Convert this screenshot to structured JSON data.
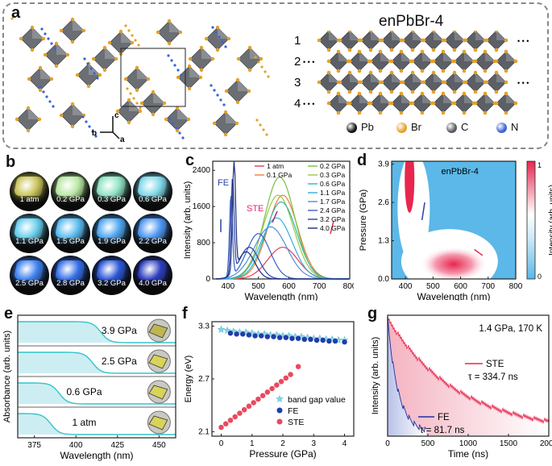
{
  "panels": {
    "a": "a",
    "b": "b",
    "c": "c",
    "d": "d",
    "e": "e",
    "f": "f",
    "g": "g"
  },
  "panel_a": {
    "title": "enPbBr-4",
    "layers": [
      "1",
      "2",
      "3",
      "4"
    ],
    "dots": "• • •",
    "legend": [
      {
        "label": "Pb",
        "color": "#111111"
      },
      {
        "label": "Br",
        "color": "#e5a12a"
      },
      {
        "label": "C",
        "color": "#555a60"
      },
      {
        "label": "N",
        "color": "#3a62d6"
      }
    ],
    "axes": {
      "c": "c",
      "a": "a",
      "b": "b"
    }
  },
  "panel_b": {
    "images": [
      {
        "label": "1 atm",
        "color": "#c9c45a"
      },
      {
        "label": "0.2 GPa",
        "color": "#b9e8a3"
      },
      {
        "label": "0.3 GPa",
        "color": "#8fe3c4"
      },
      {
        "label": "0.6 GPa",
        "color": "#7fd8ea"
      },
      {
        "label": "1.1 GPa",
        "color": "#69cfee"
      },
      {
        "label": "1.5 GPa",
        "color": "#5bbcf0"
      },
      {
        "label": "1.9 GPa",
        "color": "#4fa7f1"
      },
      {
        "label": "2.2 GPa",
        "color": "#4e97f3"
      },
      {
        "label": "2.5 GPa",
        "color": "#3f82f0"
      },
      {
        "label": "2.8 GPa",
        "color": "#356fe8"
      },
      {
        "label": "3.2 GPa",
        "color": "#2c57d7"
      },
      {
        "label": "4.0 GPa",
        "color": "#2d3fbf"
      }
    ]
  },
  "chart_data": [
    {
      "id": "c",
      "type": "line",
      "xlabel": "Wavelength (nm)",
      "ylabel": "Intensity (arb. units)",
      "xlim": [
        350,
        800
      ],
      "ylim": [
        0,
        2600
      ],
      "xticks": [
        400,
        500,
        600,
        700,
        800
      ],
      "yticks": [
        0,
        800,
        1600,
        2400
      ],
      "annotations": [
        "FE",
        "STE"
      ],
      "series": [
        {
          "name": "1 atm",
          "color": "#e83a5a",
          "fe_amp": 0,
          "ste_amp": 700,
          "ste_center": 580,
          "ste_width": 70
        },
        {
          "name": "0.1 GPa",
          "color": "#f07c3c",
          "fe_amp": 0,
          "ste_amp": 1850,
          "ste_center": 580,
          "ste_width": 70
        },
        {
          "name": "0.2 GPa",
          "color": "#76c043",
          "fe_amp": 0,
          "ste_amp": 2250,
          "ste_center": 570,
          "ste_width": 70
        },
        {
          "name": "0.3 GPa",
          "color": "#9bc748",
          "fe_amp": 0,
          "ste_amp": 1850,
          "ste_center": 565,
          "ste_width": 72
        },
        {
          "name": "0.6 GPa",
          "color": "#2fb8a6",
          "fe_amp": 0,
          "ste_amp": 1700,
          "ste_center": 575,
          "ste_width": 72
        },
        {
          "name": "1.1 GPa",
          "color": "#36aee0",
          "fe_amp": 0,
          "ste_amp": 1350,
          "ste_center": 560,
          "ste_width": 72
        },
        {
          "name": "1.7 GPa",
          "color": "#4f8fd9",
          "fe_amp": 0,
          "ste_amp": 1150,
          "ste_center": 540,
          "ste_width": 75
        },
        {
          "name": "2.4 GPa",
          "color": "#3a5fc2",
          "fe_amp": 1800,
          "fe_center": 410,
          "fe_width": 7,
          "ste_amp": 1000,
          "ste_center": 500,
          "ste_width": 55
        },
        {
          "name": "3.2 GPa",
          "color": "#2a42a3",
          "fe_amp": 2100,
          "fe_center": 415,
          "fe_width": 7,
          "ste_amp": 700,
          "ste_center": 470,
          "ste_width": 45
        },
        {
          "name": "4.0 GPa",
          "color": "#1c2b7a",
          "fe_amp": 2450,
          "fe_center": 420,
          "fe_width": 7,
          "ste_amp": 600,
          "ste_center": 460,
          "ste_width": 40
        }
      ]
    },
    {
      "id": "d",
      "type": "heatmap",
      "title": "enPbBr-4",
      "xlabel": "Wavelength (nm)",
      "ylabel": "Pressure (GPa)",
      "xlim": [
        350,
        800
      ],
      "ylim": [
        0,
        4.0
      ],
      "xticks": [
        400,
        500,
        600,
        700,
        800
      ],
      "yticks": [
        "0.0",
        "1.3",
        "2.6",
        "3.9"
      ],
      "colorbar": {
        "label": "Intensity (arb. units)",
        "ticks": [
          "1",
          "0"
        ],
        "min_color": "#5bb8e8",
        "mid_color": "#ffffff",
        "max_color": "#e8264e"
      }
    },
    {
      "id": "e",
      "type": "line",
      "xlabel": "Wavelength (nm)",
      "ylabel": "Absorbance (arb. units)",
      "xlim": [
        365,
        460
      ],
      "xticks": [
        375,
        400,
        425,
        450
      ],
      "series": [
        {
          "name": "3.9 GPa",
          "edge": 415
        },
        {
          "name": "2.5 GPa",
          "edge": 410
        },
        {
          "name": "0.6 GPa",
          "edge": 390
        },
        {
          "name": "1 atm",
          "edge": 385
        }
      ]
    },
    {
      "id": "f",
      "type": "scatter",
      "xlabel": "Pressure (GPa)",
      "ylabel": "Energy (eV)",
      "xlim": [
        -0.3,
        4.3
      ],
      "ylim": [
        2.05,
        3.35
      ],
      "xticks": [
        0,
        1,
        2,
        3,
        4
      ],
      "yticks": [
        2.1,
        2.7,
        3.3
      ],
      "series": [
        {
          "name": "band gap value",
          "marker": "star",
          "color": "#7ed6e8",
          "x": [
            0,
            0.2,
            0.4,
            0.6,
            0.8,
            1.0,
            1.2,
            1.4,
            1.6,
            1.8,
            2.0,
            2.2,
            2.4,
            2.6,
            2.8,
            3.0,
            3.2,
            3.4,
            3.6,
            3.8,
            4.0
          ],
          "y": [
            3.26,
            3.25,
            3.24,
            3.23,
            3.23,
            3.22,
            3.21,
            3.21,
            3.2,
            3.2,
            3.19,
            3.19,
            3.18,
            3.18,
            3.17,
            3.16,
            3.16,
            3.15,
            3.15,
            3.14,
            3.14
          ]
        },
        {
          "name": "FE",
          "marker": "circle",
          "color": "#1e3fa8",
          "x": [
            0.3,
            0.5,
            0.7,
            0.9,
            1.1,
            1.3,
            1.5,
            1.7,
            1.9,
            2.1,
            2.3,
            2.5,
            2.7,
            2.9,
            3.1,
            3.3,
            3.5,
            3.7,
            4.0
          ],
          "y": [
            3.22,
            3.21,
            3.21,
            3.2,
            3.19,
            3.19,
            3.18,
            3.18,
            3.17,
            3.17,
            3.16,
            3.16,
            3.15,
            3.15,
            3.14,
            3.14,
            3.13,
            3.13,
            3.12
          ]
        },
        {
          "name": "STE",
          "marker": "circle",
          "color": "#e84a5f",
          "x": [
            0,
            0.15,
            0.3,
            0.45,
            0.6,
            0.75,
            0.9,
            1.05,
            1.2,
            1.35,
            1.5,
            1.65,
            1.8,
            1.95,
            2.1,
            2.25,
            2.5
          ],
          "y": [
            2.15,
            2.19,
            2.23,
            2.27,
            2.31,
            2.35,
            2.39,
            2.43,
            2.47,
            2.51,
            2.55,
            2.59,
            2.63,
            2.67,
            2.71,
            2.75,
            2.84
          ]
        }
      ]
    },
    {
      "id": "g",
      "type": "line",
      "xlabel": "Time (ns)",
      "ylabel": "Intensity (arb. units)",
      "xlim": [
        0,
        2000
      ],
      "xticks": [
        0,
        500,
        1000,
        1500,
        2000
      ],
      "annotations": [
        "1.4 GPa, 170 K"
      ],
      "series": [
        {
          "name": "STE",
          "color": "#e8264e",
          "tau_label": "τ = 334.7 ns",
          "tau": 334.7
        },
        {
          "name": "FE",
          "color": "#1e2fa8",
          "tau_label": "τ = 81.7 ns",
          "tau": 81.7
        }
      ]
    }
  ]
}
